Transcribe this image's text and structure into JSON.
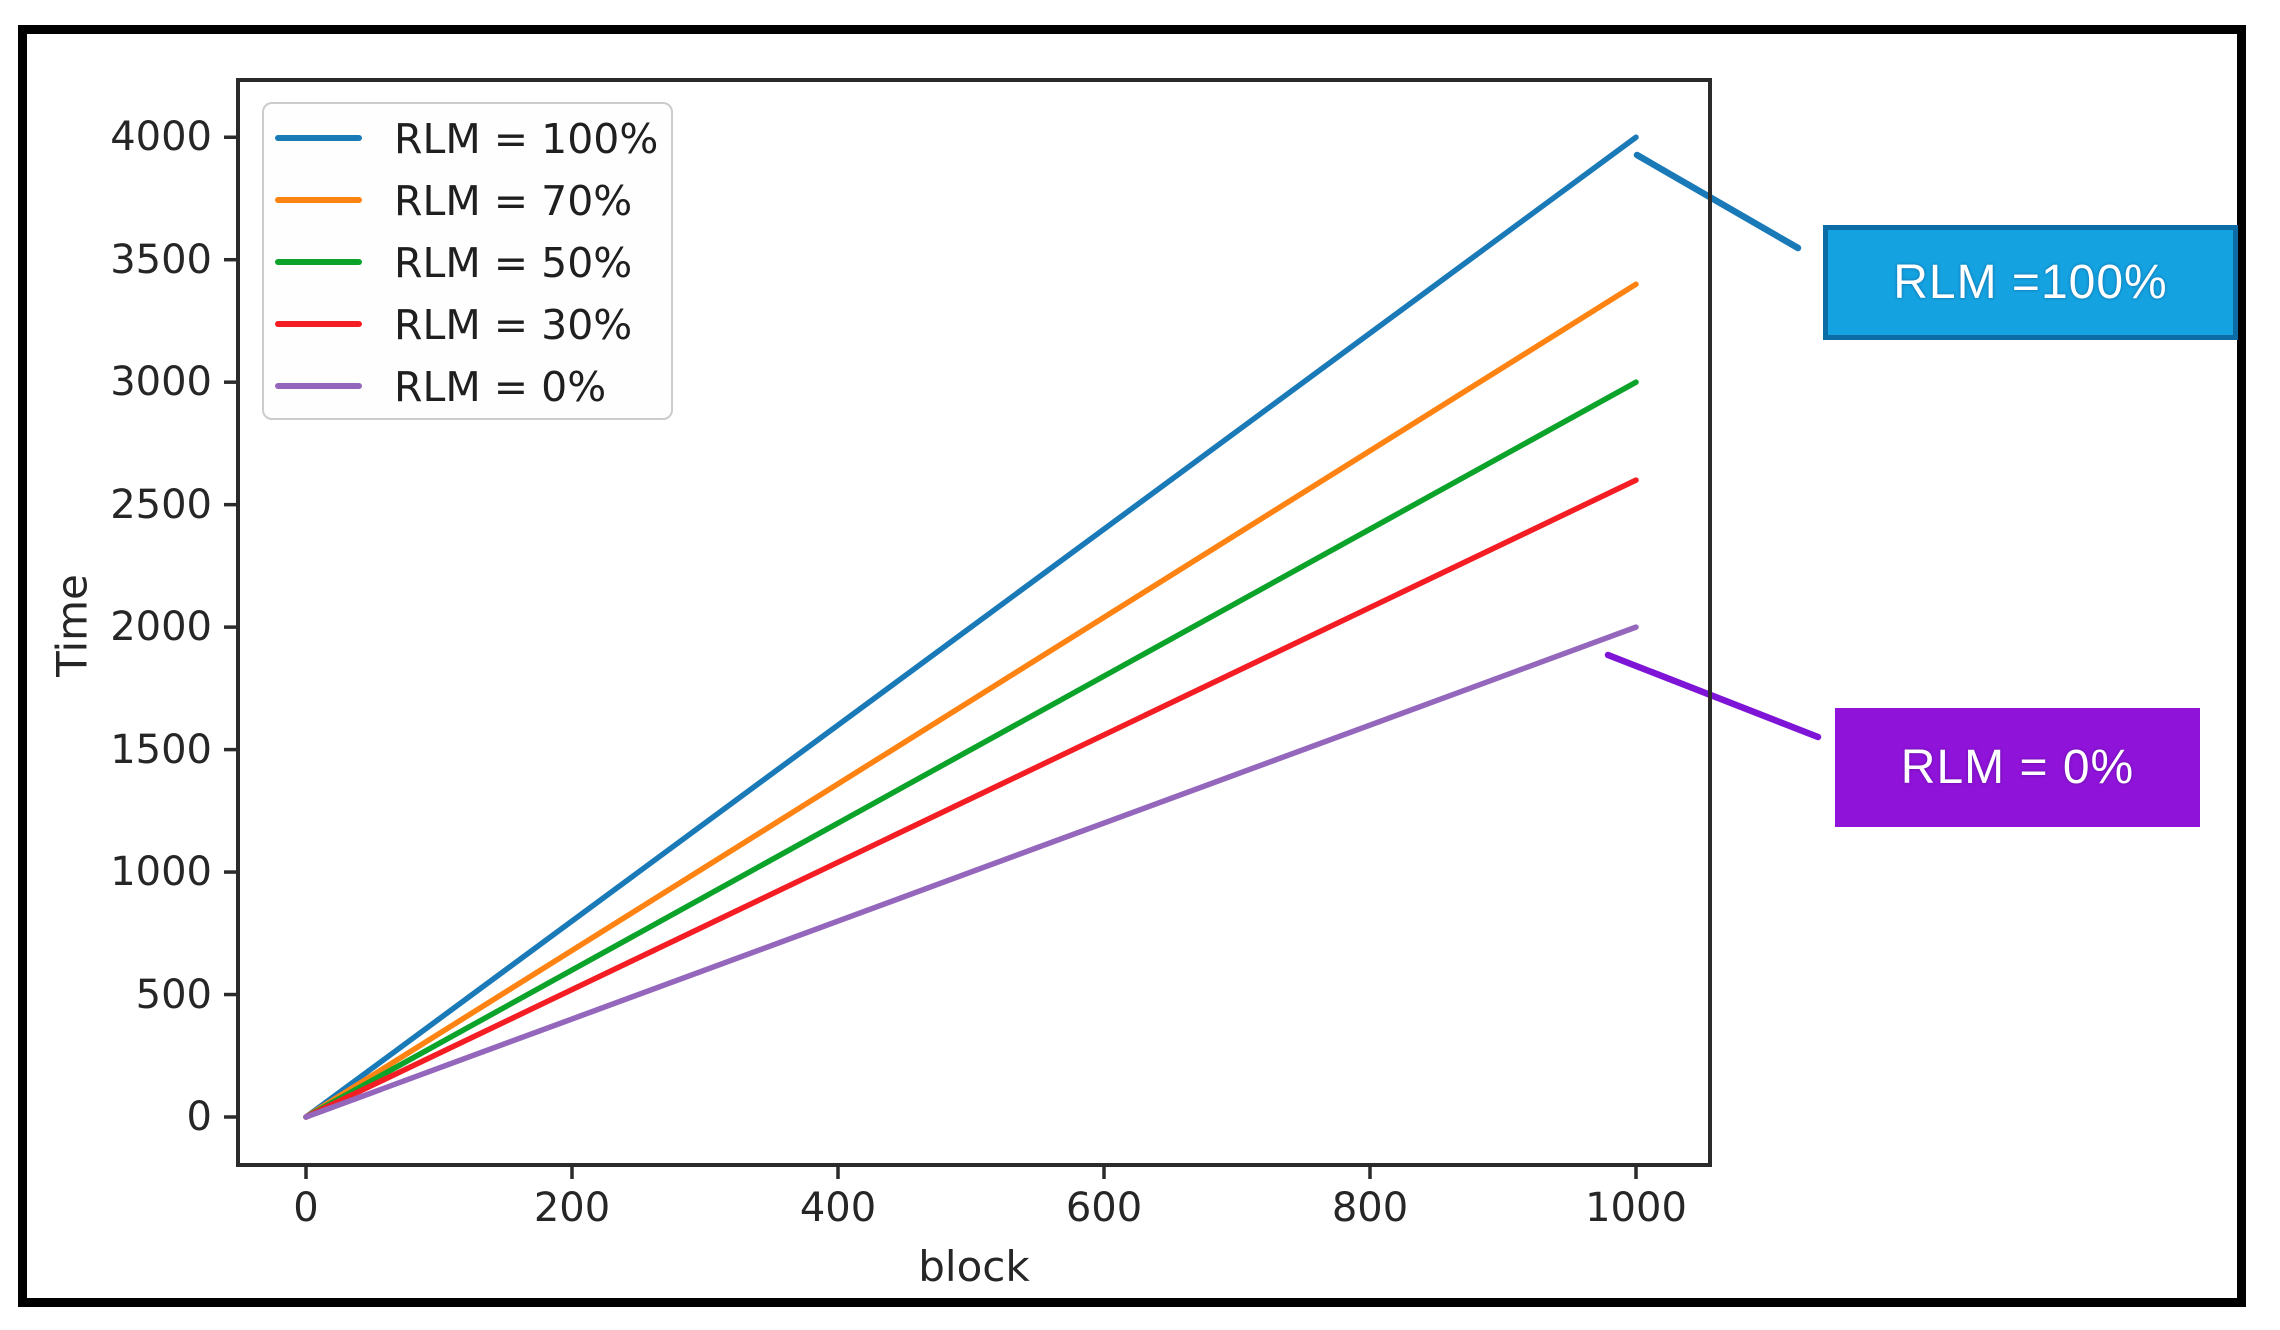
{
  "chart_data": {
    "type": "line",
    "title": "",
    "xlabel": "block",
    "ylabel": "Time",
    "x_ticks": [
      0,
      200,
      400,
      600,
      800,
      1000
    ],
    "y_ticks": [
      0,
      500,
      1000,
      1500,
      2000,
      2500,
      3000,
      3500,
      4000
    ],
    "xlim": [
      -51,
      1055
    ],
    "ylim": [
      -196,
      4242
    ],
    "grid": false,
    "legend_position": "upper left",
    "series": [
      {
        "name": "RLM = 100%",
        "color": "#1a7ab8",
        "x": [
          0,
          1000
        ],
        "y": [
          0,
          4000
        ]
      },
      {
        "name": "RLM = 70%",
        "color": "#ff8312",
        "x": [
          0,
          1000
        ],
        "y": [
          0,
          3400
        ]
      },
      {
        "name": "RLM = 50%",
        "color": "#0ba32a",
        "x": [
          0,
          1000
        ],
        "y": [
          0,
          3000
        ]
      },
      {
        "name": "RLM = 30%",
        "color": "#f41d24",
        "x": [
          0,
          1000
        ],
        "y": [
          0,
          2600
        ]
      },
      {
        "name": "RLM = 0%",
        "color": "#9467bd",
        "x": [
          0,
          1000
        ],
        "y": [
          0,
          2000
        ]
      }
    ]
  },
  "annotations": [
    {
      "text": "RLM =100%",
      "fill": "#14a2e0",
      "border": "#0d6ca6",
      "text_color": "#ffffff",
      "leader_color": "#1a7ab8"
    },
    {
      "text": "RLM = 0%",
      "fill": "#9013d9",
      "border": "#9013d9",
      "text_color": "#ffffff",
      "leader_color": "#7d14d6"
    }
  ],
  "frame": {
    "border_color": "#000000",
    "background": "#ffffff",
    "spine_color": "#2b2b2b"
  }
}
